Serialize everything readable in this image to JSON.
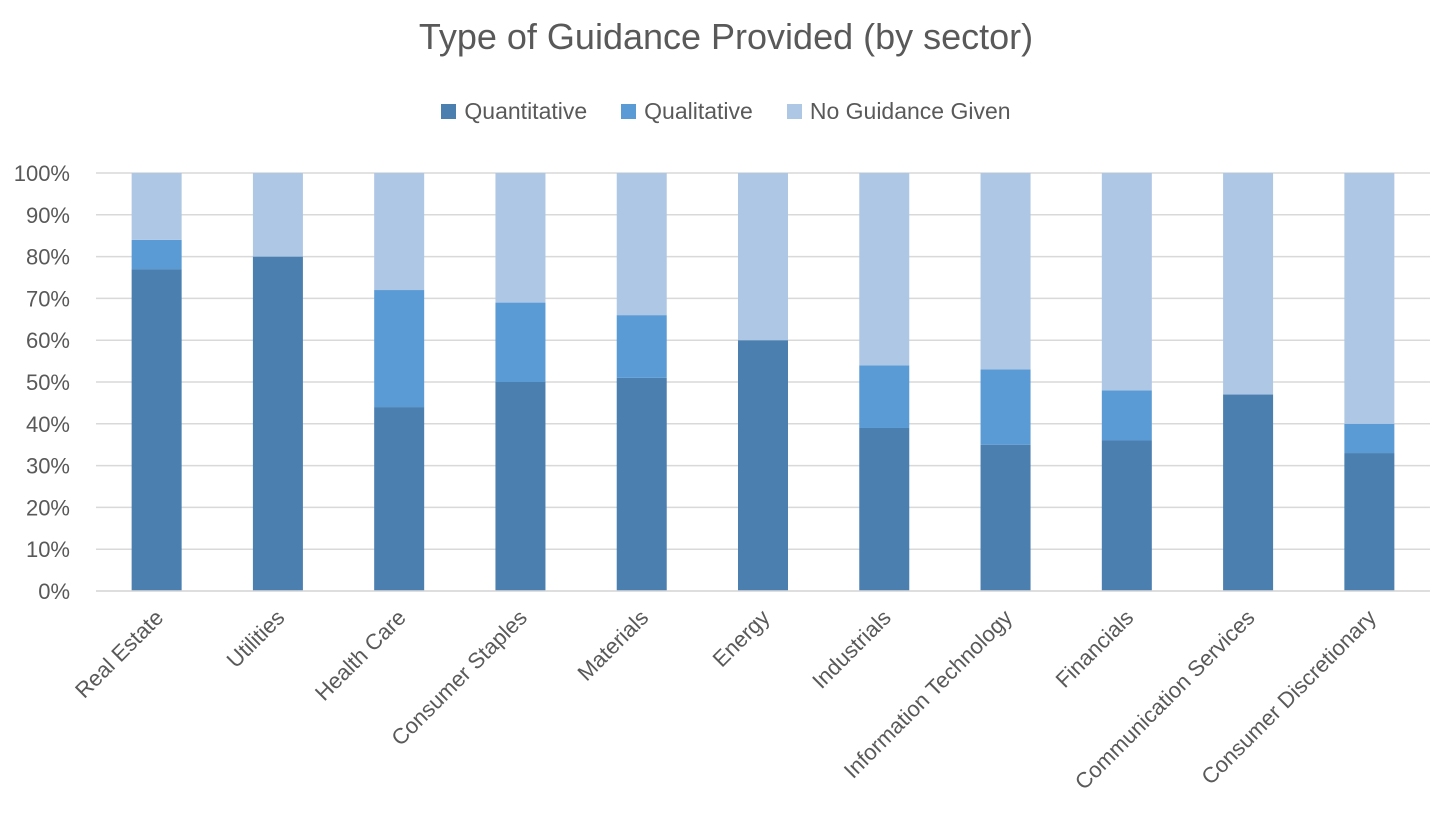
{
  "chart_data": {
    "type": "bar",
    "stacked": true,
    "title": "Type of Guidance Provided (by sector)",
    "categories": [
      "Real Estate",
      "Utilities",
      "Health Care",
      "Consumer Staples",
      "Materials",
      "Energy",
      "Industrials",
      "Information Technology",
      "Financials",
      "Communication Services",
      "Consumer Discretionary"
    ],
    "series": [
      {
        "name": "Quantitative",
        "color": "#4a7fb0",
        "values": [
          77,
          80,
          44,
          50,
          51,
          60,
          39,
          35,
          36,
          47,
          33
        ]
      },
      {
        "name": "Qualitative",
        "color": "#5b9bd5",
        "values": [
          7,
          0,
          28,
          19,
          15,
          0,
          15,
          18,
          12,
          0,
          7
        ]
      },
      {
        "name": "No Guidance Given",
        "color": "#aec7e4",
        "values": [
          16,
          20,
          28,
          31,
          34,
          40,
          46,
          47,
          52,
          53,
          60
        ]
      }
    ],
    "yticks": [
      "0%",
      "10%",
      "20%",
      "30%",
      "40%",
      "50%",
      "60%",
      "70%",
      "80%",
      "90%",
      "100%"
    ],
    "ylim": [
      0,
      100
    ],
    "grid": true,
    "legend_position": "top"
  }
}
